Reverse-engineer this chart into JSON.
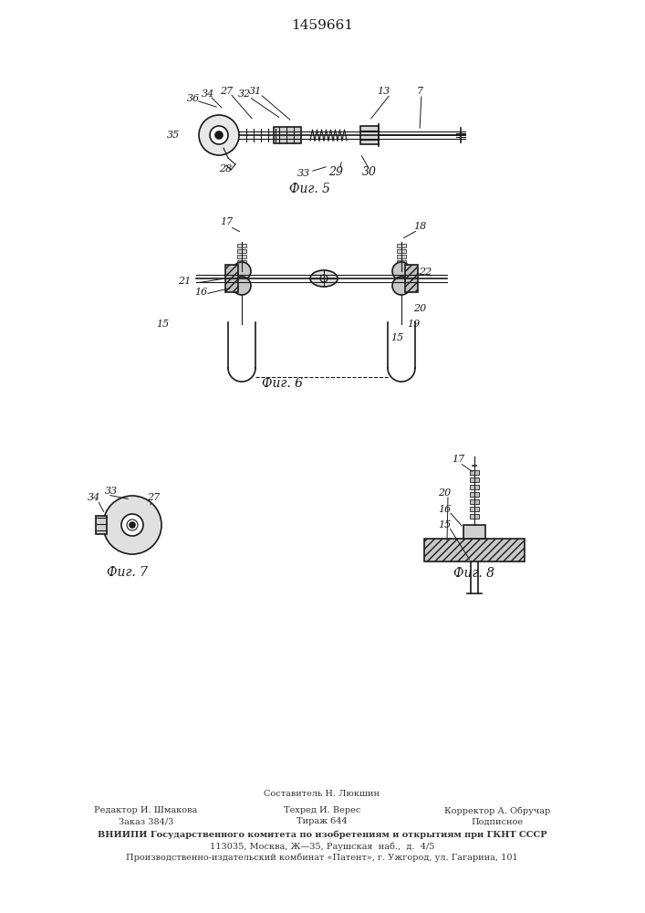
{
  "title": "1459661",
  "background_color": "#ffffff",
  "line_color": "#1a1a1a",
  "hatch_color": "#333333",
  "fig5_caption": "Фиг. 5",
  "fig6_caption": "Фиг. 6",
  "fig7_caption": "Фиг. 7",
  "fig8_caption": "Фиг. 8",
  "footer_line1": "Составитель Н. Люкшин",
  "footer_line2_col1": "Редактор И. Шмакова",
  "footer_line2_col2": "Техред И. Верес",
  "footer_line2_col3": "Корректор А. Обручар",
  "footer_line3_col1": "Заказ 384/3",
  "footer_line3_col2": "Тираж 644",
  "footer_line3_col3": "Подписное",
  "footer_vniipи": "ВНИИПИ Государственного комитета по изобретениям и открытиям при ГКНТ СССР",
  "footer_addr1": "113035, Москва, Ж—35, Раушская  наб.,  д.  4/5",
  "footer_addr2": "Производственно-издательский комбинат «Патент», г. Ужгород, ул. Гагарина, 101"
}
